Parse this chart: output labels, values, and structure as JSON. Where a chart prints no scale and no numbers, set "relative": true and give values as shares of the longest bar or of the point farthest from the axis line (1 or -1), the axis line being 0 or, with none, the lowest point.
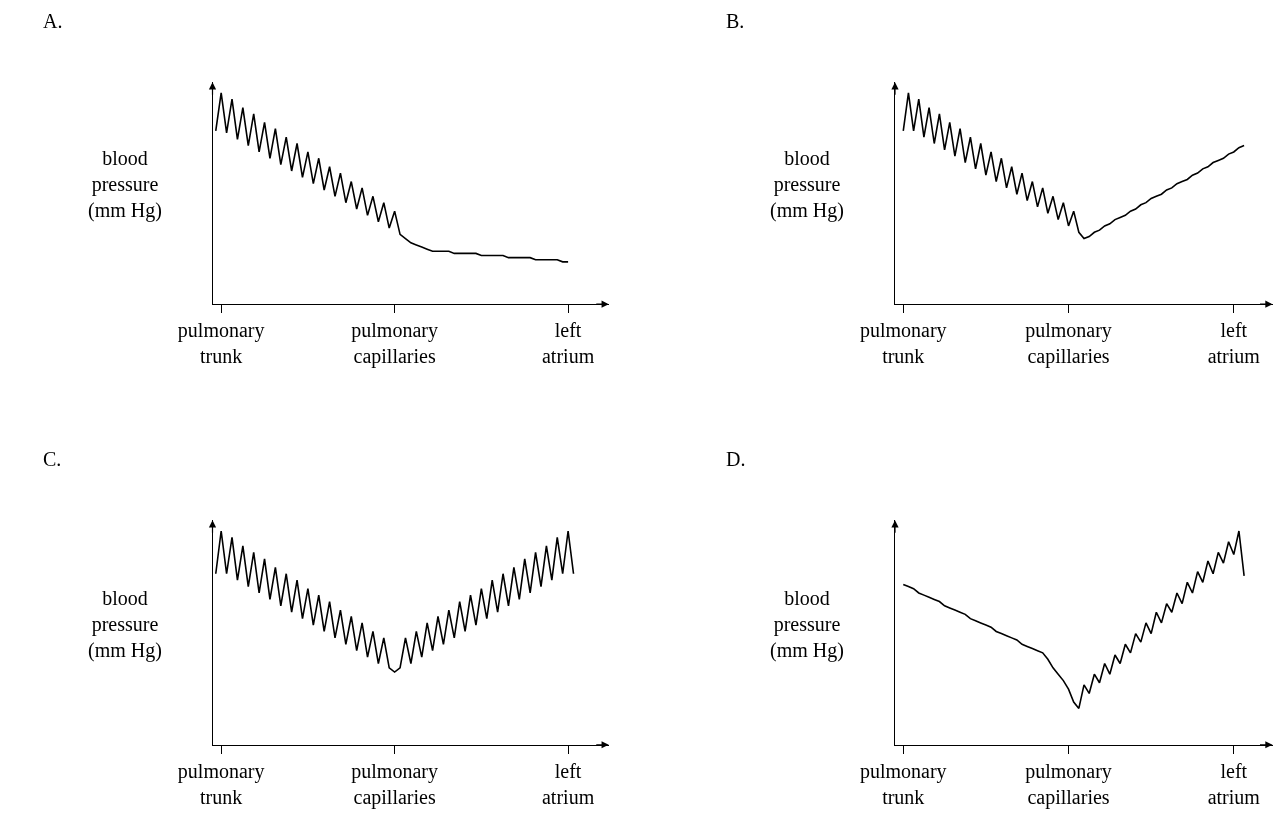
{
  "chart_data": [
    {
      "type": "line",
      "title": "A.",
      "ylabel": "blood\npressure\n(mm Hg)",
      "relative": true,
      "categories": [
        null,
        "pulmonary\ntrunk",
        null,
        null,
        null,
        null,
        null,
        null,
        null,
        null,
        null,
        null,
        null,
        null,
        null,
        null,
        null,
        null,
        null,
        null,
        null,
        null,
        null,
        null,
        null,
        null,
        null,
        null,
        null,
        null,
        null,
        null,
        null,
        "pulmonary\ncapillaries",
        null,
        null,
        null,
        null,
        null,
        null,
        null,
        null,
        null,
        null,
        null,
        null,
        null,
        null,
        null,
        null,
        null,
        null,
        null,
        null,
        null,
        null,
        null,
        null,
        null,
        null,
        null,
        null,
        null,
        null,
        null,
        "left\natrium",
        null,
        null,
        null
      ],
      "series": [
        {
          "color": "#000000",
          "values": [
            0.82,
            1.0,
            0.81,
            0.97,
            0.78,
            0.93,
            0.75,
            0.9,
            0.72,
            0.86,
            0.69,
            0.83,
            0.66,
            0.79,
            0.63,
            0.76,
            0.6,
            0.72,
            0.57,
            0.69,
            0.54,
            0.65,
            0.51,
            0.62,
            0.48,
            0.58,
            0.45,
            0.55,
            0.42,
            0.51,
            0.39,
            0.48,
            0.36,
            0.44,
            0.33,
            0.31,
            0.29,
            0.28,
            0.27,
            0.26,
            0.25,
            0.25,
            0.25,
            0.25,
            0.24,
            0.24,
            0.24,
            0.24,
            0.24,
            0.23,
            0.23,
            0.23,
            0.23,
            0.23,
            0.22,
            0.22,
            0.22,
            0.22,
            0.22,
            0.21,
            0.21,
            0.21,
            0.21,
            0.21,
            0.2,
            0.2,
            null,
            null,
            null
          ]
        }
      ]
    },
    {
      "type": "line",
      "title": "B.",
      "ylabel": "blood\npressure\n(mm Hg)",
      "relative": true,
      "categories": [
        null,
        "pulmonary\ntrunk",
        null,
        null,
        null,
        null,
        null,
        null,
        null,
        null,
        null,
        null,
        null,
        null,
        null,
        null,
        null,
        null,
        null,
        null,
        null,
        null,
        null,
        null,
        null,
        null,
        null,
        null,
        null,
        null,
        null,
        null,
        null,
        "pulmonary\ncapillaries",
        null,
        null,
        null,
        null,
        null,
        null,
        null,
        null,
        null,
        null,
        null,
        null,
        null,
        null,
        null,
        null,
        null,
        null,
        null,
        null,
        null,
        null,
        null,
        null,
        null,
        null,
        null,
        null,
        null,
        null,
        null,
        "left\natrium",
        null,
        null,
        null
      ],
      "series": [
        {
          "color": "#000000",
          "values": [
            null,
            0.82,
            1.0,
            0.82,
            0.97,
            0.79,
            0.93,
            0.76,
            0.9,
            0.73,
            0.86,
            0.7,
            0.83,
            0.67,
            0.79,
            0.64,
            0.76,
            0.61,
            0.72,
            0.58,
            0.69,
            0.55,
            0.65,
            0.52,
            0.62,
            0.49,
            0.58,
            0.46,
            0.55,
            0.43,
            0.51,
            0.4,
            0.48,
            0.37,
            0.44,
            0.34,
            0.31,
            0.32,
            0.34,
            0.35,
            0.37,
            0.38,
            0.4,
            0.41,
            0.42,
            0.44,
            0.45,
            0.47,
            0.48,
            0.5,
            0.51,
            0.52,
            0.54,
            0.55,
            0.57,
            0.58,
            0.59,
            0.61,
            0.62,
            0.64,
            0.65,
            0.67,
            0.68,
            0.69,
            0.71,
            0.72,
            0.74,
            0.75,
            null
          ]
        }
      ]
    },
    {
      "type": "line",
      "title": "C.",
      "ylabel": "blood\npressure\n(mm Hg)",
      "relative": true,
      "categories": [
        null,
        "pulmonary\ntrunk",
        null,
        null,
        null,
        null,
        null,
        null,
        null,
        null,
        null,
        null,
        null,
        null,
        null,
        null,
        null,
        null,
        null,
        null,
        null,
        null,
        null,
        null,
        null,
        null,
        null,
        null,
        null,
        null,
        null,
        null,
        null,
        "pulmonary\ncapillaries",
        null,
        null,
        null,
        null,
        null,
        null,
        null,
        null,
        null,
        null,
        null,
        null,
        null,
        null,
        null,
        null,
        null,
        null,
        null,
        null,
        null,
        null,
        null,
        null,
        null,
        null,
        null,
        null,
        null,
        null,
        null,
        "left\natrium",
        null,
        null,
        null
      ],
      "series": [
        {
          "color": "#000000",
          "values": [
            0.8,
            1.0,
            0.8,
            0.97,
            0.77,
            0.93,
            0.74,
            0.9,
            0.71,
            0.87,
            0.68,
            0.83,
            0.65,
            0.8,
            0.62,
            0.77,
            0.59,
            0.73,
            0.56,
            0.7,
            0.53,
            0.67,
            0.5,
            0.63,
            0.47,
            0.6,
            0.44,
            0.57,
            0.41,
            0.53,
            0.38,
            0.5,
            0.36,
            0.34,
            0.36,
            0.5,
            0.38,
            0.53,
            0.41,
            0.57,
            0.44,
            0.6,
            0.47,
            0.63,
            0.5,
            0.67,
            0.53,
            0.7,
            0.56,
            0.73,
            0.59,
            0.77,
            0.62,
            0.8,
            0.65,
            0.83,
            0.68,
            0.87,
            0.71,
            0.9,
            0.74,
            0.93,
            0.77,
            0.97,
            0.8,
            1.0,
            0.8,
            null,
            null
          ]
        }
      ]
    },
    {
      "type": "line",
      "title": "D.",
      "ylabel": "blood\npressure\n(mm Hg)",
      "relative": true,
      "categories": [
        null,
        "pulmonary\ntrunk",
        null,
        null,
        null,
        null,
        null,
        null,
        null,
        null,
        null,
        null,
        null,
        null,
        null,
        null,
        null,
        null,
        null,
        null,
        null,
        null,
        null,
        null,
        null,
        null,
        null,
        null,
        null,
        null,
        null,
        null,
        null,
        "pulmonary\ncapillaries",
        null,
        null,
        null,
        null,
        null,
        null,
        null,
        null,
        null,
        null,
        null,
        null,
        null,
        null,
        null,
        null,
        null,
        null,
        null,
        null,
        null,
        null,
        null,
        null,
        null,
        null,
        null,
        null,
        null,
        null,
        null,
        "left\natrium",
        null,
        null,
        null
      ],
      "series": [
        {
          "color": "#000000",
          "values": [
            null,
            0.75,
            0.74,
            0.73,
            0.71,
            0.7,
            0.69,
            0.68,
            0.67,
            0.65,
            0.64,
            0.63,
            0.62,
            0.61,
            0.59,
            0.58,
            0.57,
            0.56,
            0.55,
            0.53,
            0.52,
            0.51,
            0.5,
            0.49,
            0.47,
            0.46,
            0.45,
            0.44,
            0.43,
            0.4,
            0.36,
            0.33,
            0.3,
            0.26,
            0.2,
            0.17,
            0.28,
            0.24,
            0.33,
            0.29,
            0.38,
            0.33,
            0.42,
            0.38,
            0.47,
            0.43,
            0.52,
            0.48,
            0.57,
            0.52,
            0.62,
            0.57,
            0.66,
            0.62,
            0.71,
            0.66,
            0.76,
            0.71,
            0.81,
            0.76,
            0.86,
            0.8,
            0.9,
            0.85,
            0.95,
            0.89,
            1.0,
            0.79,
            null
          ]
        }
      ]
    }
  ]
}
